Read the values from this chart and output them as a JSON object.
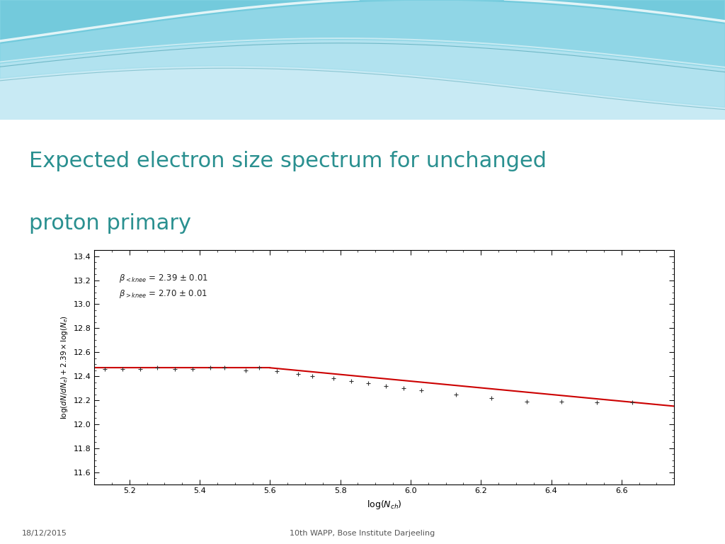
{
  "title_line1": "Expected electron size spectrum for unchanged",
  "title_line2": "proton primary",
  "title_color": "#2a9090",
  "xlabel": "log(N_{ch})",
  "ylabel": "log(dN/dN_{e}) + 2.39 × log(N_{e})",
  "xlim": [
    5.1,
    6.75
  ],
  "ylim": [
    11.5,
    13.45
  ],
  "xticks": [
    5.2,
    5.4,
    5.6,
    5.8,
    6.0,
    6.2,
    6.4,
    6.6
  ],
  "yticks": [
    11.6,
    11.8,
    12.0,
    12.2,
    12.4,
    12.6,
    12.8,
    13.0,
    13.2,
    13.4
  ],
  "data_x": [
    5.13,
    5.18,
    5.23,
    5.28,
    5.33,
    5.38,
    5.43,
    5.47,
    5.53,
    5.57,
    5.62,
    5.68,
    5.72,
    5.78,
    5.83,
    5.88,
    5.93,
    5.98,
    6.03,
    6.13,
    6.23,
    6.33,
    6.43,
    6.53,
    6.63
  ],
  "data_y": [
    12.46,
    12.46,
    12.46,
    12.47,
    12.46,
    12.46,
    12.47,
    12.47,
    12.45,
    12.47,
    12.44,
    12.42,
    12.4,
    12.38,
    12.36,
    12.34,
    12.32,
    12.3,
    12.28,
    12.25,
    12.22,
    12.19,
    12.19,
    12.18,
    12.18
  ],
  "line1_x": [
    5.1,
    5.6
  ],
  "line1_y": [
    12.47,
    12.47
  ],
  "line2_x": [
    5.6,
    6.75
  ],
  "line2_y": [
    12.47,
    12.15
  ],
  "line_color": "#cc0000",
  "marker_color": "#333333",
  "ann_x": 5.17,
  "ann_y1": 13.2,
  "ann_y2": 13.07,
  "bg_color": "#ffffff",
  "wave_color1": "#5bbccc",
  "wave_color2": "#88d4e0",
  "wave_bg": "#b8e8f0",
  "footer_left": "18/12/2015",
  "footer_center": "10th WAPP, Bose Institute Darjeeling"
}
